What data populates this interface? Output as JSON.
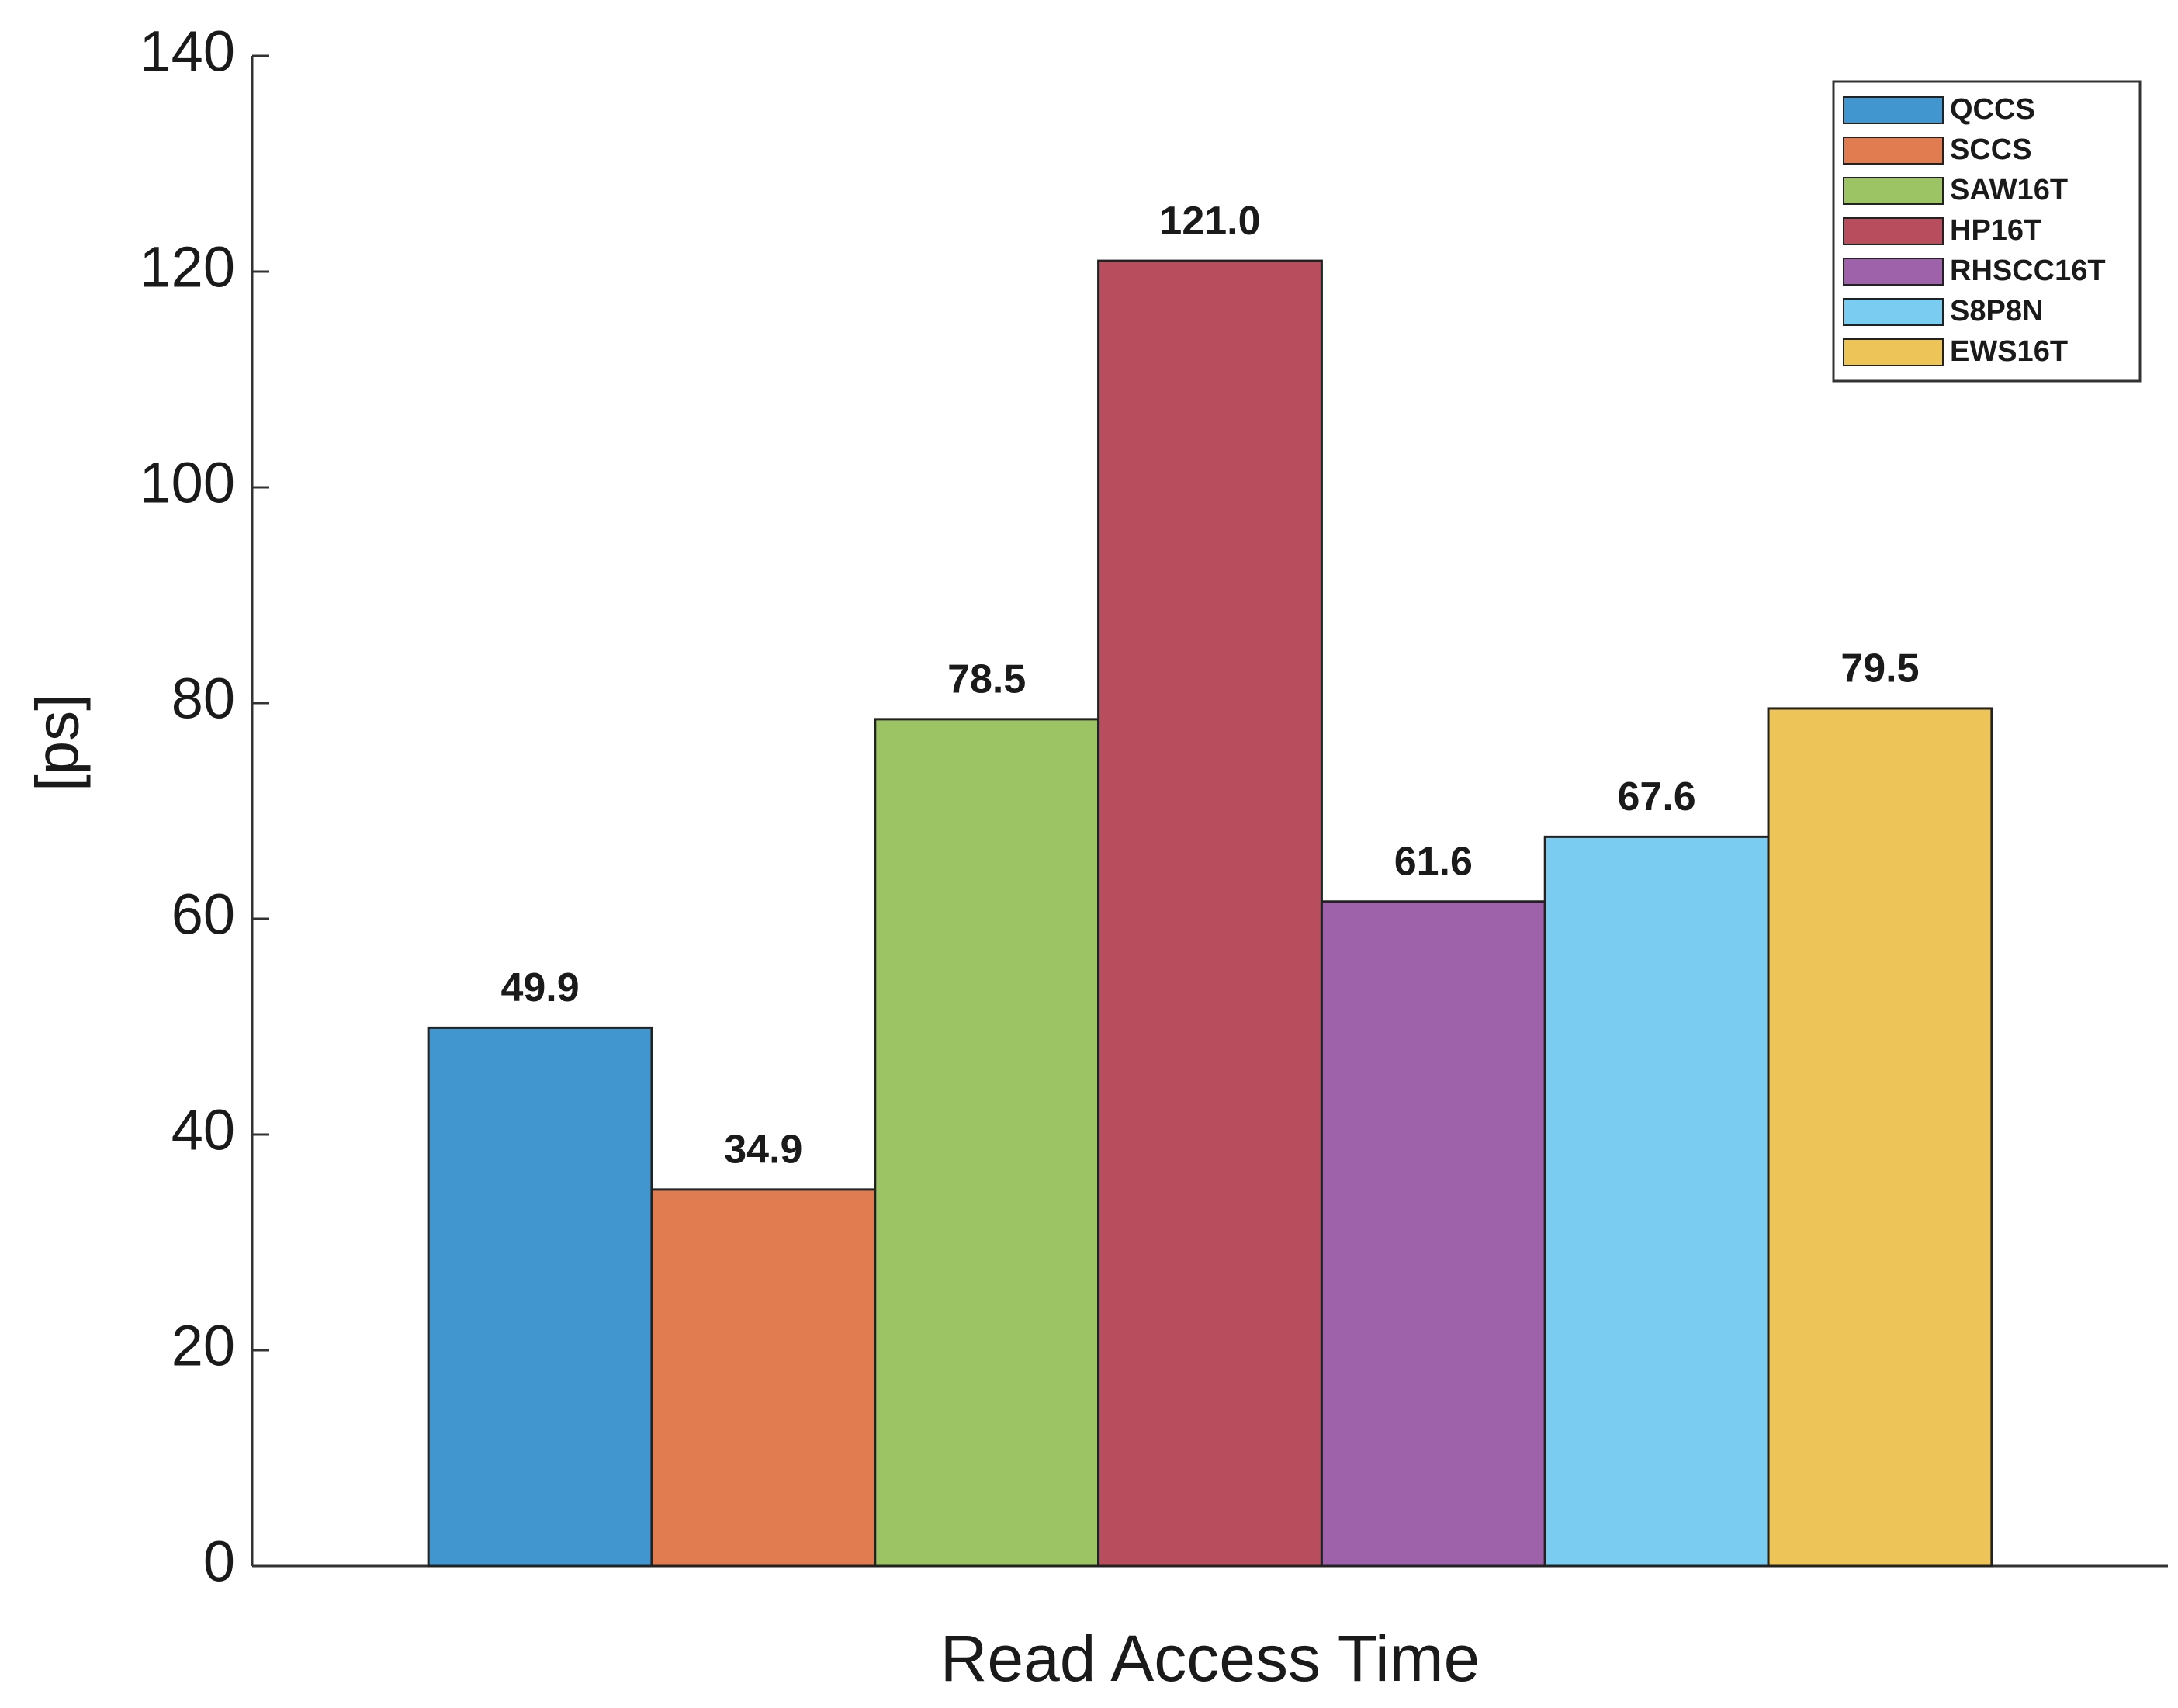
{
  "chart_data": {
    "type": "bar",
    "ylabel": "[ps]",
    "categories": [
      "Read Access Time"
    ],
    "series": [
      {
        "name": "QCCS",
        "color": "#4196cf",
        "values": [
          49.9
        ]
      },
      {
        "name": "SCCS",
        "color": "#e07c50",
        "values": [
          34.9
        ]
      },
      {
        "name": "SAW16T",
        "color": "#9dc464",
        "values": [
          78.5
        ]
      },
      {
        "name": "HP16T",
        "color": "#b84d5e",
        "values": [
          121
        ],
        "value_labels": [
          "121.0"
        ]
      },
      {
        "name": "RHSCC16T",
        "color": "#9e62aa",
        "values": [
          61.6
        ]
      },
      {
        "name": "S8P8N",
        "color": "#7accf0",
        "values": [
          67.6
        ]
      },
      {
        "name": "EWS16T",
        "color": "#edc458",
        "values": [
          79.5
        ]
      }
    ],
    "ylim": [
      0,
      140
    ],
    "yticks": [
      0,
      20,
      40,
      60,
      80,
      100,
      120,
      140
    ],
    "grid": false,
    "legend": "top-right"
  }
}
